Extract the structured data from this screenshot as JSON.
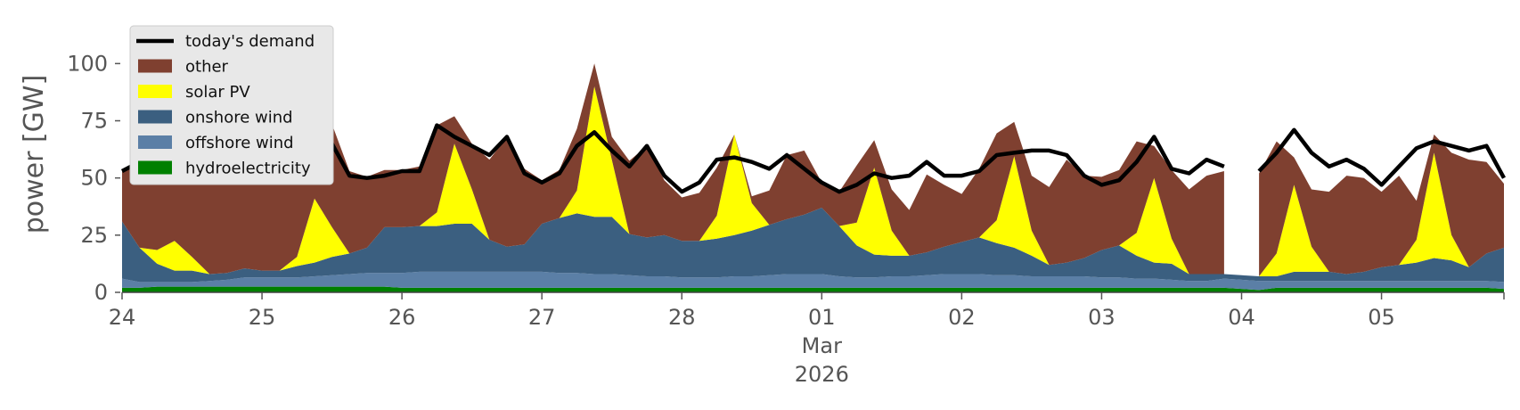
{
  "chart_data": {
    "type": "area",
    "ylabel": "power [GW]",
    "ylim": [
      0,
      120
    ],
    "yticks": [
      0,
      25,
      50,
      75,
      100
    ],
    "xlim": [
      "2026-02-24T00:00",
      "2026-03-05T21:00"
    ],
    "x_ticks": [
      {
        "date": "2026-02-24",
        "label": "24"
      },
      {
        "date": "2026-02-25",
        "label": "25"
      },
      {
        "date": "2026-02-26",
        "label": "26"
      },
      {
        "date": "2026-02-27",
        "label": "27"
      },
      {
        "date": "2026-02-28",
        "label": "28"
      },
      {
        "date": "2026-03-01",
        "label": "01"
      },
      {
        "date": "2026-03-02",
        "label": "02"
      },
      {
        "date": "2026-03-03",
        "label": "03"
      },
      {
        "date": "2026-03-04",
        "label": "04"
      },
      {
        "date": "2026-03-05",
        "label": "05"
      }
    ],
    "x_sublabels": [
      "Mar",
      "2026"
    ],
    "grid": false,
    "legend_position": "top-left",
    "x": [
      "2026-02-24T00:00",
      "2026-02-24T03:00",
      "2026-02-24T06:00",
      "2026-02-24T09:00",
      "2026-02-24T12:00",
      "2026-02-24T15:00",
      "2026-02-24T18:00",
      "2026-02-24T21:00",
      "2026-02-25T00:00",
      "2026-02-25T03:00",
      "2026-02-25T06:00",
      "2026-02-25T09:00",
      "2026-02-25T12:00",
      "2026-02-25T15:00",
      "2026-02-25T18:00",
      "2026-02-25T21:00",
      "2026-02-26T00:00",
      "2026-02-26T03:00",
      "2026-02-26T06:00",
      "2026-02-26T09:00",
      "2026-02-26T12:00",
      "2026-02-26T15:00",
      "2026-02-26T18:00",
      "2026-02-26T21:00",
      "2026-02-27T00:00",
      "2026-02-27T03:00",
      "2026-02-27T06:00",
      "2026-02-27T09:00",
      "2026-02-27T12:00",
      "2026-02-27T15:00",
      "2026-02-27T18:00",
      "2026-02-27T21:00",
      "2026-02-28T00:00",
      "2026-02-28T03:00",
      "2026-02-28T06:00",
      "2026-02-28T09:00",
      "2026-02-28T12:00",
      "2026-02-28T15:00",
      "2026-02-28T18:00",
      "2026-02-28T21:00",
      "2026-03-01T00:00",
      "2026-03-01T03:00",
      "2026-03-01T06:00",
      "2026-03-01T09:00",
      "2026-03-01T12:00",
      "2026-03-01T15:00",
      "2026-03-01T18:00",
      "2026-03-01T21:00",
      "2026-03-02T00:00",
      "2026-03-02T03:00",
      "2026-03-02T06:00",
      "2026-03-02T09:00",
      "2026-03-02T12:00",
      "2026-03-02T15:00",
      "2026-03-02T18:00",
      "2026-03-02T21:00",
      "2026-03-03T00:00",
      "2026-03-03T03:00",
      "2026-03-03T06:00",
      "2026-03-03T09:00",
      "2026-03-03T12:00",
      "2026-03-03T15:00",
      "2026-03-03T18:00",
      "2026-03-03T21:00",
      "2026-03-04T00:00",
      "2026-03-04T03:00",
      "2026-03-04T06:00",
      "2026-03-04T09:00",
      "2026-03-04T12:00",
      "2026-03-04T15:00",
      "2026-03-04T18:00",
      "2026-03-04T21:00",
      "2026-03-05T00:00",
      "2026-03-05T03:00",
      "2026-03-05T06:00",
      "2026-03-05T09:00",
      "2026-03-05T12:00",
      "2026-03-05T15:00",
      "2026-03-05T18:00",
      "2026-03-05T21:00"
    ],
    "series": [
      {
        "name": "hydroelectricity",
        "color": "#008000",
        "values": [
          2,
          2,
          2.5,
          2.5,
          2.5,
          2.5,
          2.5,
          2.5,
          2.5,
          2.5,
          2.5,
          2.5,
          2.5,
          2.5,
          2.5,
          2.5,
          2,
          2,
          2,
          2,
          2,
          2,
          2,
          2,
          2,
          2,
          2,
          2,
          2,
          2,
          2,
          2,
          2,
          2,
          2,
          2,
          2,
          2,
          2,
          2,
          2,
          2,
          2,
          2,
          2,
          2,
          2,
          2,
          2,
          2,
          2,
          2,
          2,
          2,
          2,
          2,
          2,
          2,
          2,
          2,
          2,
          2,
          2,
          2,
          1.5,
          1,
          2,
          2,
          2,
          2,
          2,
          2,
          2,
          2,
          2,
          2,
          2,
          2,
          2,
          1.5
        ]
      },
      {
        "name": "offshore wind",
        "color": "#5b7fa6",
        "values": [
          4,
          2.5,
          2,
          2,
          2,
          2.5,
          3,
          4,
          4,
          4,
          4,
          4.5,
          5,
          5.5,
          6,
          6,
          6.5,
          7,
          7,
          7,
          7,
          7,
          7,
          7,
          7,
          6.5,
          6.5,
          6,
          6,
          5.5,
          5,
          5,
          4.5,
          4.5,
          4.5,
          5,
          5,
          5.5,
          6,
          6,
          6,
          5,
          4.5,
          4.5,
          5,
          5,
          5.5,
          6,
          6,
          6,
          5.5,
          5.5,
          5,
          5,
          5,
          5,
          4.5,
          4.5,
          4,
          4,
          3.5,
          3,
          3,
          4,
          4,
          4,
          3,
          3,
          3,
          3,
          3,
          3,
          3,
          3,
          3,
          3,
          3,
          3,
          3,
          3
        ]
      },
      {
        "name": "onshore wind",
        "color": "#3b5f80",
        "values": [
          25,
          15,
          8,
          5,
          5,
          3,
          3,
          4,
          3,
          3,
          5,
          6,
          8,
          9,
          11,
          20,
          20,
          20,
          20,
          21,
          21,
          14,
          11,
          12,
          21,
          24,
          26,
          25,
          25,
          18,
          17,
          18,
          16,
          16,
          17,
          18,
          20,
          22,
          24,
          26,
          29,
          22,
          14,
          10,
          9,
          9,
          10,
          12,
          14,
          16,
          14,
          12,
          9,
          5,
          6,
          8,
          12,
          14,
          10,
          7,
          7,
          3,
          3,
          2,
          2,
          2,
          2,
          4,
          4,
          4,
          3,
          4,
          6,
          7,
          8,
          10,
          9,
          6,
          12,
          15
        ]
      },
      {
        "name": "solar PV",
        "color": "#ffff00",
        "values": [
          0,
          0,
          6,
          13,
          6,
          0,
          0,
          0,
          0,
          0,
          4,
          28,
          13,
          0,
          0,
          0,
          0,
          0,
          6,
          35,
          15,
          0,
          0,
          0,
          0,
          0,
          10,
          57,
          25,
          0,
          0,
          0,
          0,
          0,
          10,
          44,
          12,
          0,
          0,
          0,
          0,
          0,
          10,
          38,
          11,
          0,
          0,
          0,
          0,
          0,
          10,
          40,
          11,
          0,
          0,
          0,
          0,
          0,
          10,
          37,
          11,
          0,
          0,
          0,
          0,
          0,
          10,
          38,
          11,
          0,
          0,
          0,
          0,
          0,
          10,
          46,
          11,
          0,
          0,
          0
        ]
      },
      {
        "name": "other",
        "color": "#7f4030",
        "values": [
          22,
          38,
          56,
          52,
          60,
          59,
          59,
          46,
          41,
          53,
          61,
          31,
          45,
          36,
          31,
          25,
          25,
          26,
          38,
          12,
          20,
          35,
          48,
          33,
          19,
          21,
          27,
          10,
          10,
          32,
          40,
          24,
          19,
          21,
          21,
          0,
          3,
          15,
          28,
          28,
          11,
          15,
          25,
          12,
          18,
          20,
          34,
          27,
          21,
          30,
          38,
          15,
          24,
          34,
          45,
          36,
          32,
          33,
          40,
          14,
          30,
          37,
          43,
          45,
          null,
          45,
          49,
          12,
          25,
          35,
          43,
          41,
          33,
          39,
          17,
          8,
          36,
          47,
          40,
          28
        ]
      }
    ],
    "demand": {
      "name": "today's demand",
      "color": "#000000",
      "values": [
        53,
        57,
        72,
        72,
        72,
        64,
        65,
        52,
        50,
        62,
        72,
        70,
        65,
        51,
        50,
        51,
        53,
        53,
        73,
        68,
        64,
        60,
        68,
        52,
        48,
        52,
        64,
        70,
        62,
        55,
        64,
        51,
        44,
        48,
        58,
        59,
        57,
        54,
        60,
        54,
        48,
        44,
        47,
        52,
        50,
        51,
        57,
        51,
        51,
        53,
        60,
        61,
        62,
        62,
        60,
        51,
        47,
        49,
        57,
        68,
        54,
        52,
        58,
        55,
        null,
        53,
        61,
        71,
        61,
        55,
        58,
        54,
        47,
        55,
        63,
        66,
        64,
        62,
        64,
        50
      ]
    }
  }
}
